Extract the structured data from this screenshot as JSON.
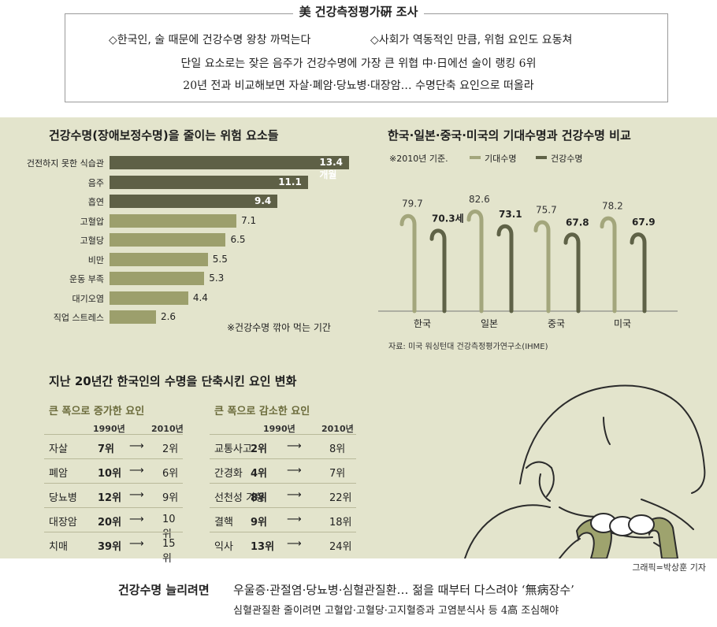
{
  "header": {
    "title": "美 건강측정평가硏 조사",
    "line1_a": "◇한국인, 술 때문에 건강수명 왕창 까먹는다",
    "line1_b": "◇사회가 역동적인 만큼, 위험 요인도 요동쳐",
    "line2": "단일 요소로는 잦은 음주가  건강수명에 가장 큰 위협   中·日에선 술이 랭킹 6위",
    "line3": "20년 전과 비교해보면  자살·폐암·당뇨병·대장암…  수명단축 요인으로 떠올라"
  },
  "colors": {
    "panel_bg": "#e3e4cc",
    "bar_dark": "#5e6046",
    "bar_light": "#9c9f6c",
    "cane_light": "#a3a67c",
    "cane_dark": "#5f6247"
  },
  "chart_data": [
    {
      "type": "bar",
      "orientation": "horizontal",
      "title": "건강수명(장애보정수명)을 줄이는 위험 요소들",
      "categories": [
        "건전하지 못한 식습관",
        "음주",
        "흡연",
        "고혈압",
        "고혈당",
        "비만",
        "운동 부족",
        "대기오염",
        "직업 스트레스"
      ],
      "values": [
        13.4,
        11.1,
        9.4,
        7.1,
        6.5,
        5.5,
        5.3,
        4.4,
        2.6
      ],
      "value_labels": [
        "13.4개월",
        "11.1",
        "9.4",
        "7.1",
        "6.5",
        "5.5",
        "5.3",
        "4.4",
        "2.6"
      ],
      "note": "※건강수명 깎아 먹는 기간"
    },
    {
      "type": "bar",
      "title": "한국·일본·중국·미국의 기대수명과 건강수명 비교",
      "subtitle": "※2010년 기준.",
      "categories": [
        "한국",
        "일본",
        "중국",
        "미국"
      ],
      "series": [
        {
          "name": "기대수명",
          "values": [
            79.7,
            82.6,
            75.7,
            78.2
          ],
          "labels": [
            "79.7",
            "82.6",
            "75.7",
            "78.2"
          ]
        },
        {
          "name": "건강수명",
          "values": [
            70.3,
            73.1,
            67.8,
            67.9
          ],
          "labels": [
            "70.3세",
            "73.1",
            "67.8",
            "67.9"
          ]
        }
      ],
      "source": "자료: 미국 워싱턴대 건강측정평가연구소(IHME)"
    }
  ],
  "rank_section": {
    "title": "지난 20년간 한국인의 수명을 단축시킨 요인 변화",
    "increase": {
      "heading": "큰 폭으로 증가한 요인",
      "col1": "1990년",
      "col2": "2010년",
      "rows": [
        {
          "name": "자살",
          "r1990": "7위",
          "r2010": "2위"
        },
        {
          "name": "폐암",
          "r1990": "10위",
          "r2010": "6위"
        },
        {
          "name": "당뇨병",
          "r1990": "12위",
          "r2010": "9위"
        },
        {
          "name": "대장암",
          "r1990": "20위",
          "r2010": "10위"
        },
        {
          "name": "치매",
          "r1990": "39위",
          "r2010": "15위"
        }
      ]
    },
    "decrease": {
      "heading": "큰 폭으로 감소한 요인",
      "col1": "1990년",
      "col2": "2010년",
      "rows": [
        {
          "name": "교통사고",
          "r1990": "2위",
          "r2010": "8위"
        },
        {
          "name": "간경화",
          "r1990": "4위",
          "r2010": "7위"
        },
        {
          "name": "선천성 기형",
          "r1990": "8위",
          "r2010": "22위"
        },
        {
          "name": "결핵",
          "r1990": "9위",
          "r2010": "18위"
        },
        {
          "name": "익사",
          "r1990": "13위",
          "r2010": "24위"
        }
      ]
    },
    "arrow": "⟶"
  },
  "footer": {
    "credit": "그래픽=박상훈 기자",
    "lead": "건강수명 늘리려면",
    "line1": "우울증·관절염·당뇨병·심혈관질환…  젊을 때부터 다스려야 ‘無病장수’",
    "line2": "심혈관질환 줄이려면  고혈압·고혈당·고지혈증과  고염분식사 등 4高 조심해야"
  }
}
